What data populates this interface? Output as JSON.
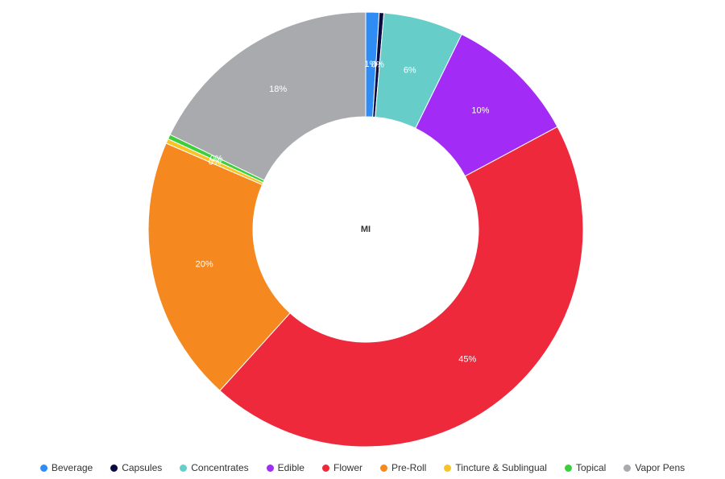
{
  "chart_data": {
    "type": "pie",
    "center_label": "MI",
    "categories": [
      "Beverage",
      "Capsules",
      "Concentrates",
      "Edible",
      "Flower",
      "Pre-Roll",
      "Tincture & Sublingual",
      "Topical",
      "Vapor Pens"
    ],
    "values": [
      1,
      0,
      6,
      10,
      45,
      20,
      0,
      0,
      18
    ],
    "percent_labels": [
      "1%",
      "0%",
      "6%",
      "10%",
      "45%",
      "20%",
      "0%",
      "0%",
      "18%"
    ],
    "colors": [
      "#2f8cf5",
      "#0b0b44",
      "#66cdc9",
      "#a22cf5",
      "#ee293c",
      "#f5881f",
      "#f7c325",
      "#3ccf3c",
      "#a9aaad"
    ],
    "legend_position": "bottom"
  }
}
